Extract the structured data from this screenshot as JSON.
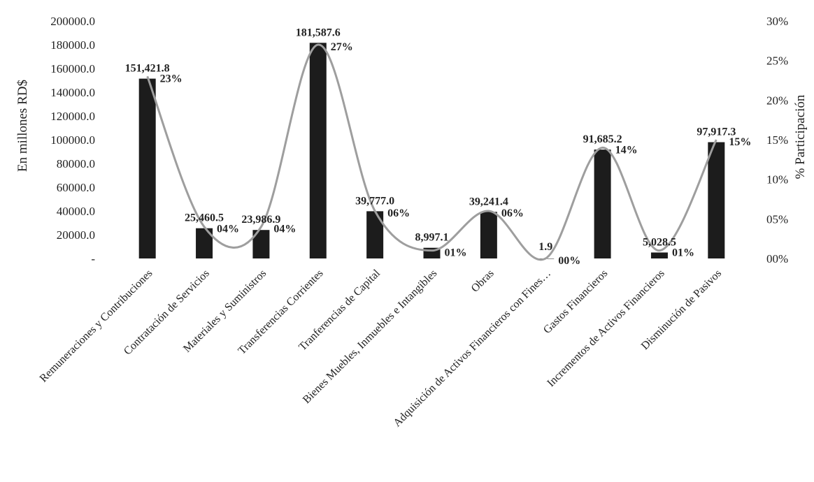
{
  "chart_data": {
    "type": "bar",
    "ylabel": "En millones RD$",
    "y2label": "% Participación",
    "ylim": [
      0,
      200000
    ],
    "y2lim": [
      0,
      30
    ],
    "yticks": [
      "-",
      "20000.0",
      "40000.0",
      "60000.0",
      "80000.0",
      "100000.0",
      "120000.0",
      "140000.0",
      "160000.0",
      "180000.0",
      "200000.0"
    ],
    "y2ticks": [
      "00%",
      "05%",
      "10%",
      "15%",
      "20%",
      "25%",
      "30%"
    ],
    "categories": [
      "Remuneraciones y Contribuciones",
      "Contratación de Servicios",
      "Materiales y Suministros",
      "Transferencias Corrientes",
      "Tranferencias de Capital",
      "Bienes Muebles, Inmuebles e Intangibles",
      "Obras",
      "Adquisición de Activos Financieros con Fines…",
      "Gastos Financieros",
      "Incrementos de Activos Financieros",
      "Disminución de Pasivos"
    ],
    "values": [
      151421.8,
      25460.5,
      23986.9,
      181587.6,
      39777.0,
      8997.1,
      39241.4,
      1.9,
      91685.2,
      5028.5,
      97917.3
    ],
    "value_labels": [
      "151,421.8",
      "25,460.5",
      "23,986.9",
      "181,587.6",
      "39,777.0",
      "8,997.1",
      "39,241.4",
      "1.9",
      "91,685.2",
      "5,028.5",
      "97,917.3"
    ],
    "percent_values": [
      23,
      4,
      4,
      27,
      6,
      1,
      6,
      0,
      14,
      1,
      15
    ],
    "percent_labels": [
      "23%",
      "04%",
      "04%",
      "27%",
      "06%",
      "01%",
      "06%",
      "00%",
      "14%",
      "01%",
      "15%"
    ],
    "colors": {
      "bar": "#1c1c1c",
      "line": "#9e9e9e"
    }
  }
}
